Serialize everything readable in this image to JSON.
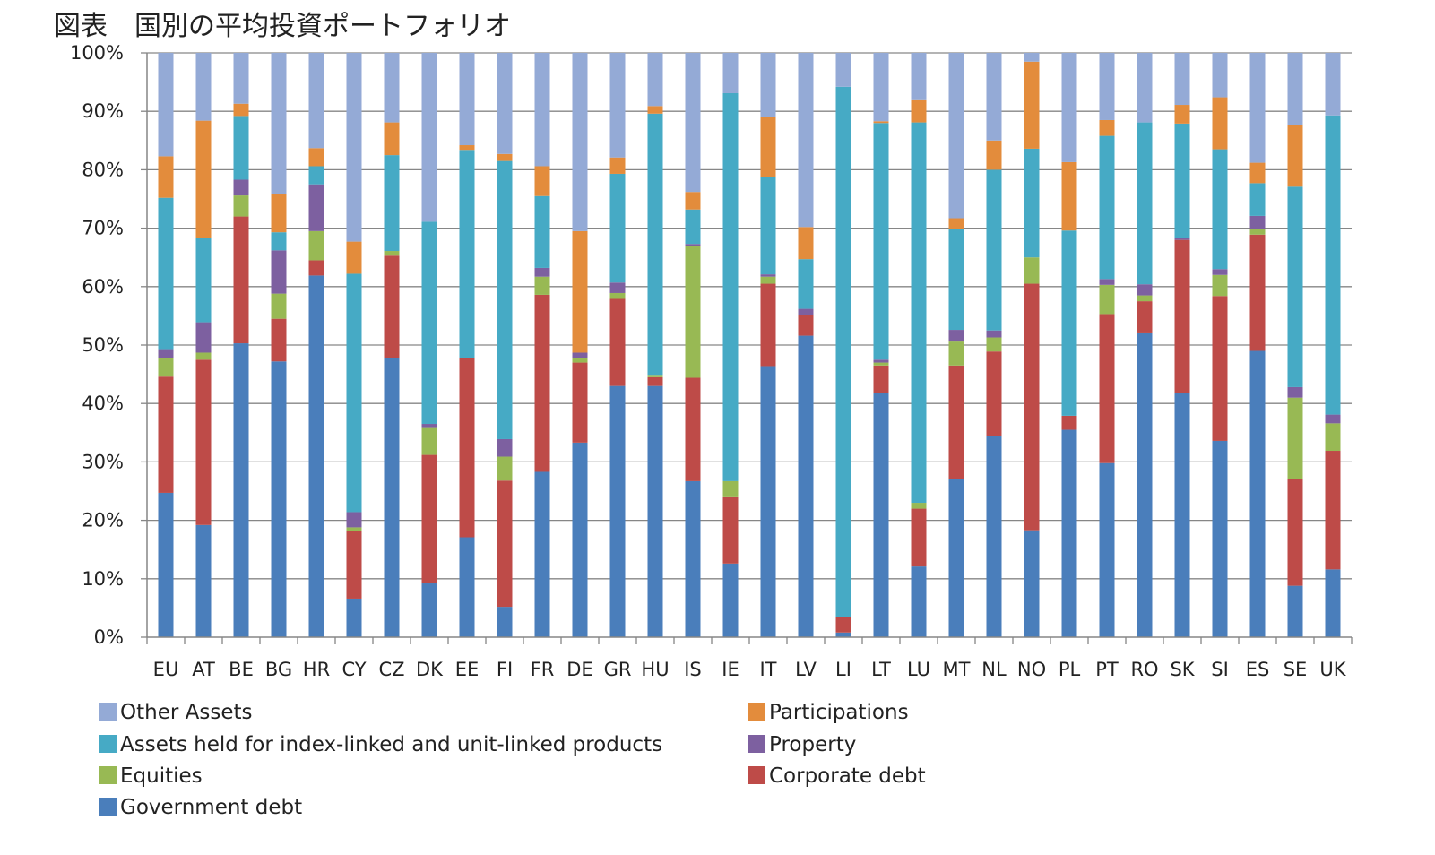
{
  "chart_data": {
    "type": "bar",
    "stacked": true,
    "percent_stacked": true,
    "title": "図表　国別の平均投資ポートフォリオ",
    "xlabel": "",
    "ylabel": "",
    "ylim": [
      0,
      100
    ],
    "yticks": [
      "0%",
      "10%",
      "20%",
      "30%",
      "40%",
      "50%",
      "60%",
      "70%",
      "80%",
      "90%",
      "100%"
    ],
    "grid": true,
    "legend_position": "bottom",
    "categories": [
      "EU",
      "AT",
      "BE",
      "BG",
      "HR",
      "CY",
      "CZ",
      "DK",
      "EE",
      "FI",
      "FR",
      "DE",
      "GR",
      "HU",
      "IS",
      "IE",
      "IT",
      "LV",
      "LI",
      "LT",
      "LU",
      "MT",
      "NL",
      "NO",
      "PL",
      "PT",
      "RO",
      "SK",
      "SI",
      "ES",
      "SE",
      "UK"
    ],
    "series": [
      {
        "name": "Government debt",
        "color": "#4a7ebb",
        "values": [
          24.7,
          19.2,
          50.3,
          47.2,
          61.9,
          6.6,
          47.7,
          9.2,
          17.1,
          5.2,
          28.3,
          33.3,
          43.0,
          43.0,
          26.7,
          12.6,
          46.4,
          51.6,
          0.8,
          41.8,
          12.1,
          27.0,
          34.5,
          18.3,
          35.5,
          29.8,
          52.0,
          41.8,
          33.6,
          49.0,
          8.8,
          11.6
        ]
      },
      {
        "name": "Corporate debt",
        "color": "#be4b48",
        "values": [
          19.9,
          28.3,
          21.7,
          7.3,
          2.6,
          11.6,
          17.6,
          22.0,
          30.7,
          21.6,
          30.3,
          13.7,
          14.9,
          1.5,
          17.7,
          11.5,
          14.1,
          3.5,
          2.6,
          4.7,
          9.9,
          19.5,
          14.4,
          42.2,
          2.4,
          25.5,
          5.5,
          26.2,
          24.8,
          19.9,
          18.2,
          20.3
        ]
      },
      {
        "name": "Equities",
        "color": "#98b954",
        "values": [
          3.2,
          1.2,
          3.6,
          4.3,
          5.0,
          0.6,
          0.8,
          4.6,
          0,
          4.1,
          3.1,
          0.7,
          1.0,
          0.4,
          22.5,
          2.6,
          1.2,
          0,
          0,
          0.5,
          1.0,
          4.1,
          2.4,
          4.5,
          0,
          5.0,
          1.0,
          0,
          3.6,
          1.0,
          14.0,
          4.7
        ]
      },
      {
        "name": "Property",
        "color": "#7d60a0",
        "values": [
          1.5,
          5.2,
          2.7,
          7.4,
          8.0,
          2.6,
          0,
          0.7,
          0,
          3.0,
          1.5,
          1.0,
          1.8,
          0,
          0.4,
          0,
          0.4,
          1.1,
          0,
          0.5,
          0,
          2.0,
          1.2,
          0,
          0,
          1.0,
          1.9,
          0.3,
          1.0,
          2.2,
          1.8,
          1.5
        ]
      },
      {
        "name": "Assets held for index-linked and unit-linked products",
        "color": "#46aac5",
        "values": [
          25.9,
          14.5,
          10.9,
          3.1,
          3.1,
          40.8,
          16.4,
          34.6,
          35.6,
          47.6,
          12.3,
          0,
          18.6,
          44.7,
          5.9,
          66.4,
          16.6,
          8.5,
          90.8,
          40.5,
          65.1,
          17.3,
          27.5,
          18.6,
          31.7,
          24.5,
          27.7,
          19.6,
          20.5,
          5.6,
          34.3,
          51.2
        ]
      },
      {
        "name": "Participations",
        "color": "#e38c3c",
        "values": [
          7.1,
          20.0,
          2.1,
          6.5,
          3.1,
          5.5,
          5.6,
          0,
          0.8,
          1.2,
          5.1,
          20.8,
          2.8,
          1.3,
          3.0,
          0,
          10.3,
          5.5,
          0,
          0.3,
          3.8,
          1.8,
          5.0,
          14.9,
          11.7,
          2.7,
          0,
          3.2,
          8.9,
          3.5,
          10.5,
          0
        ]
      },
      {
        "name": "Other Assets",
        "color": "#94aad6",
        "values": [
          17.7,
          11.6,
          8.7,
          24.2,
          16.3,
          32.3,
          11.9,
          28.9,
          15.8,
          17.3,
          19.4,
          30.5,
          17.9,
          9.1,
          23.8,
          6.9,
          11.0,
          29.8,
          5.8,
          11.7,
          8.1,
          28.3,
          15.0,
          1.5,
          18.7,
          11.5,
          11.9,
          8.9,
          7.6,
          18.8,
          12.4,
          10.7
        ]
      }
    ],
    "legend_items": [
      {
        "label": "Other Assets",
        "color": "#94aad6"
      },
      {
        "label": "Participations",
        "color": "#e38c3c"
      },
      {
        "label": "Assets held for index-linked and unit-linked products",
        "color": "#46aac5"
      },
      {
        "label": "Property",
        "color": "#7d60a0"
      },
      {
        "label": "Equities",
        "color": "#98b954"
      },
      {
        "label": "Corporate debt",
        "color": "#be4b48"
      },
      {
        "label": "Government debt",
        "color": "#4a7ebb"
      }
    ],
    "axis_color": "#868686",
    "grid_color": "#868686"
  }
}
